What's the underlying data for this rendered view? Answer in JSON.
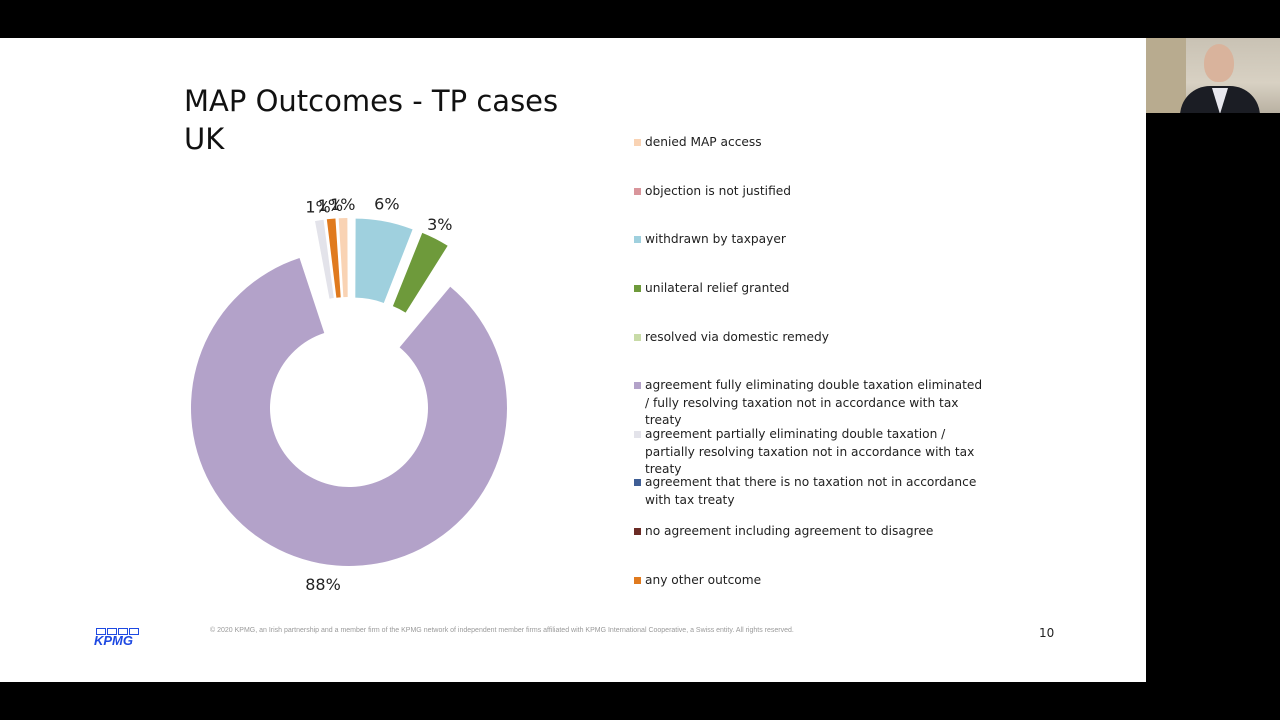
{
  "slide": {
    "title": "MAP Outcomes - TP cases\nUK",
    "footer": "© 2020 KPMG, an Irish partnership and a member firm of the KPMG network of independent member firms affiliated with KPMG International Cooperative, a Swiss entity. All rights reserved.",
    "page_number": "10",
    "logo_text": "KPMG"
  },
  "chart_data": {
    "type": "pie",
    "subtype": "exploded-doughnut",
    "legend_position": "right",
    "categories": [
      "denied MAP access",
      "objection is not justified",
      "withdrawn by taxpayer",
      "unilateral relief granted",
      "resolved via domestic remedy",
      "agreement fully eliminating double taxation eliminated / fully resolving taxation not in accordance with tax treaty",
      "agreement partially eliminating double taxation / partially resolving taxation not in accordance with tax treaty",
      "agreement that there is no taxation not in accordance with tax treaty",
      "no agreement including agreement to disagree",
      "any other outcome"
    ],
    "values": [
      1,
      0,
      6,
      3,
      0,
      88,
      1,
      0,
      0,
      1
    ],
    "labels": [
      "1%",
      "",
      "6%",
      "3%",
      "",
      "88%",
      "1%",
      "",
      "",
      "1%"
    ],
    "colors": [
      "#f9d3b4",
      "#d9959b",
      "#9fd0de",
      "#6e9a3b",
      "#c8dba7",
      "#b3a2c9",
      "#e3e3ea",
      "#3f5e95",
      "#6b2b25",
      "#e07a1e"
    ]
  },
  "webcam": {
    "description_icon": "presenter-video-icon"
  }
}
